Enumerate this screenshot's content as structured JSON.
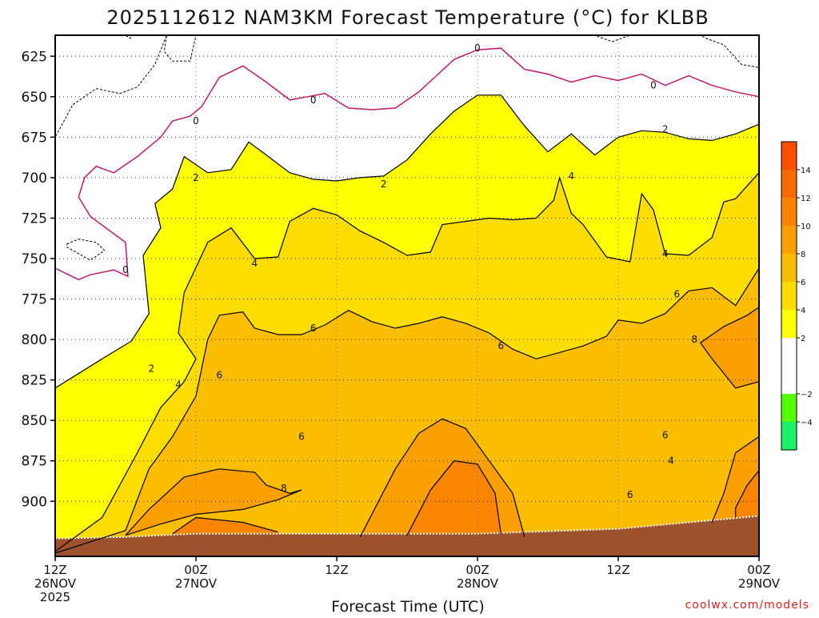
{
  "chart_data": {
    "type": "heatmap",
    "title": "2025112612 NAM3KM Forecast Temperature (°C) for KLBB",
    "xlabel": "Forecast Time (UTC)",
    "ylabel": "",
    "credit": "coolwx.com/models",
    "y_axis": {
      "unit": "hPa",
      "inverted": true,
      "range": [
        612,
        934
      ],
      "ticks": [
        625,
        650,
        675,
        700,
        725,
        750,
        775,
        800,
        825,
        850,
        875,
        900
      ]
    },
    "x_axis": {
      "unit": "forecast hours from 2025112612",
      "range": [
        0,
        60
      ],
      "ticks": [
        {
          "hour": 0,
          "lines": [
            "12Z",
            "26NOV",
            "2025"
          ]
        },
        {
          "hour": 12,
          "lines": [
            "00Z",
            "27NOV"
          ]
        },
        {
          "hour": 24,
          "lines": [
            "12Z"
          ]
        },
        {
          "hour": 36,
          "lines": [
            "00Z",
            "28NOV"
          ]
        },
        {
          "hour": 48,
          "lines": [
            "12Z"
          ]
        },
        {
          "hour": 60,
          "lines": [
            "00Z",
            "29NOV"
          ]
        }
      ]
    },
    "grid": true,
    "colorbar": {
      "position": "right",
      "ticks": [
        -4,
        -2,
        2,
        4,
        6,
        8,
        10,
        12,
        14
      ],
      "bands": [
        {
          "from": -6,
          "to": -4,
          "color": "#19f266"
        },
        {
          "from": -4,
          "to": -2,
          "color": "#55ff00"
        },
        {
          "from": -2,
          "to": 2,
          "color": "#ffffff"
        },
        {
          "from": 2,
          "to": 4,
          "color": "#ffff00"
        },
        {
          "from": 4,
          "to": 6,
          "color": "#fddc00"
        },
        {
          "from": 6,
          "to": 8,
          "color": "#fbbd00"
        },
        {
          "from": 8,
          "to": 10,
          "color": "#fba000"
        },
        {
          "from": 10,
          "to": 12,
          "color": "#fb8400"
        },
        {
          "from": 12,
          "to": 14,
          "color": "#fb6a00"
        },
        {
          "from": 14,
          "to": 16,
          "color": "#fb4e00"
        }
      ]
    },
    "terrain_color": "#9d522d",
    "terrain_pressure": [
      [
        0,
        923
      ],
      [
        6,
        922
      ],
      [
        12,
        920
      ],
      [
        24,
        920
      ],
      [
        36,
        920
      ],
      [
        48,
        917
      ],
      [
        54,
        913
      ],
      [
        60,
        909
      ]
    ],
    "isotherms": [
      {
        "temp": 0,
        "color": "#c01a6e",
        "points": [
          [
            0,
            756
          ],
          [
            2,
            763
          ],
          [
            3,
            760
          ],
          [
            5,
            757
          ],
          [
            6.2,
            761
          ],
          [
            6,
            740
          ],
          [
            4.5,
            732
          ],
          [
            3,
            724
          ],
          [
            2,
            712
          ],
          [
            2.5,
            700
          ],
          [
            3.5,
            693
          ],
          [
            5,
            697
          ],
          [
            7,
            687
          ],
          [
            9,
            675
          ],
          [
            10,
            665
          ],
          [
            11.5,
            662
          ],
          [
            12.5,
            656
          ],
          [
            14,
            638
          ],
          [
            16,
            631
          ],
          [
            18,
            641
          ],
          [
            20,
            652
          ],
          [
            23,
            648
          ],
          [
            25,
            657
          ],
          [
            27,
            658
          ],
          [
            29,
            657
          ],
          [
            31,
            647
          ],
          [
            32.5,
            637
          ],
          [
            34,
            627
          ],
          [
            36,
            621
          ],
          [
            38,
            620
          ],
          [
            40,
            633
          ],
          [
            42,
            636
          ],
          [
            44,
            641
          ],
          [
            46,
            637
          ],
          [
            48,
            640
          ],
          [
            50,
            636
          ],
          [
            52,
            643
          ],
          [
            54,
            637
          ],
          [
            56,
            643
          ],
          [
            58,
            647
          ],
          [
            60,
            650
          ]
        ],
        "labels": [
          [
            6,
            757
          ],
          [
            12,
            665
          ],
          [
            22,
            652
          ],
          [
            36,
            620
          ],
          [
            51,
            643
          ]
        ]
      },
      {
        "temp": 2,
        "color": "#000000",
        "points": [
          [
            0,
            830
          ],
          [
            4,
            812
          ],
          [
            6.5,
            801
          ],
          [
            8,
            784
          ],
          [
            7.5,
            748
          ],
          [
            9,
            731
          ],
          [
            8.5,
            716
          ],
          [
            10,
            707
          ],
          [
            11,
            687
          ],
          [
            13,
            697
          ],
          [
            15,
            695
          ],
          [
            16.5,
            678
          ],
          [
            18,
            686
          ],
          [
            20,
            697
          ],
          [
            22,
            701
          ],
          [
            24,
            702
          ],
          [
            26,
            700
          ],
          [
            28,
            699
          ],
          [
            30,
            689
          ],
          [
            32,
            673
          ],
          [
            34,
            659
          ],
          [
            36,
            649
          ],
          [
            38,
            649
          ],
          [
            40,
            668
          ],
          [
            42,
            684
          ],
          [
            44,
            673
          ],
          [
            46,
            686
          ],
          [
            48,
            675
          ],
          [
            50,
            671
          ],
          [
            52,
            672
          ],
          [
            54,
            676
          ],
          [
            56,
            677
          ],
          [
            58,
            673
          ],
          [
            60,
            667
          ]
        ],
        "labels": [
          [
            12,
            700
          ],
          [
            28,
            704
          ],
          [
            52,
            670
          ],
          [
            8.2,
            818
          ]
        ]
      },
      {
        "temp": 4,
        "color": "#000000",
        "points": [
          [
            0,
            931
          ],
          [
            4,
            910
          ],
          [
            7,
            870
          ],
          [
            9,
            842
          ],
          [
            11,
            826
          ],
          [
            12,
            812
          ],
          [
            10.5,
            796
          ],
          [
            11,
            771
          ],
          [
            13,
            740
          ],
          [
            15,
            731
          ],
          [
            17,
            750
          ],
          [
            19,
            749
          ],
          [
            20,
            727
          ],
          [
            22,
            719
          ],
          [
            24,
            723
          ],
          [
            26,
            733
          ],
          [
            28,
            740
          ],
          [
            30,
            748
          ],
          [
            32,
            746
          ],
          [
            33,
            729
          ],
          [
            35,
            727
          ],
          [
            37,
            725
          ],
          [
            39,
            726
          ],
          [
            41,
            725
          ],
          [
            42.5,
            714
          ],
          [
            43,
            700
          ],
          [
            44,
            722
          ],
          [
            45,
            729
          ],
          [
            47,
            749
          ],
          [
            49,
            752
          ],
          [
            50,
            710
          ],
          [
            51,
            720
          ],
          [
            52,
            747
          ],
          [
            54,
            748
          ],
          [
            56,
            737
          ],
          [
            57,
            715
          ],
          [
            58,
            713
          ],
          [
            60,
            697
          ]
        ],
        "labels": [
          [
            10.5,
            828
          ],
          [
            17,
            753
          ],
          [
            44,
            699
          ],
          [
            52,
            747
          ],
          [
            52.5,
            875
          ]
        ]
      },
      {
        "temp": 6,
        "color": "#000000",
        "points": [
          [
            0,
            932
          ],
          [
            6,
            918
          ],
          [
            8,
            880
          ],
          [
            10,
            860
          ],
          [
            12,
            835
          ],
          [
            13,
            800
          ],
          [
            14,
            785
          ],
          [
            16,
            783
          ],
          [
            17,
            793
          ],
          [
            19,
            797
          ],
          [
            21,
            797
          ],
          [
            23,
            791
          ],
          [
            25,
            782
          ],
          [
            27,
            789
          ],
          [
            29,
            793
          ],
          [
            31,
            790
          ],
          [
            33,
            786
          ],
          [
            35,
            790
          ],
          [
            37,
            796
          ],
          [
            39,
            806
          ],
          [
            41,
            812
          ],
          [
            43,
            808
          ],
          [
            45,
            804
          ],
          [
            47,
            798
          ],
          [
            48,
            788
          ],
          [
            50,
            790
          ],
          [
            52,
            784
          ],
          [
            54,
            770
          ],
          [
            56,
            768
          ],
          [
            58,
            779
          ],
          [
            60,
            756
          ]
        ],
        "labels": [
          [
            14,
            822
          ],
          [
            22,
            793
          ],
          [
            38,
            804
          ],
          [
            53,
            772
          ],
          [
            52,
            859
          ],
          [
            49,
            896
          ],
          [
            21,
            860
          ]
        ]
      },
      {
        "temp": 8,
        "color": "#000000",
        "points": [
          [
            6,
            921
          ],
          [
            8,
            905
          ],
          [
            11,
            885
          ],
          [
            14,
            880
          ],
          [
            17,
            882
          ],
          [
            18,
            890
          ],
          [
            20,
            895
          ],
          [
            21,
            893
          ],
          [
            19,
            899
          ],
          [
            16,
            905
          ],
          [
            12,
            908
          ],
          [
            9,
            914
          ],
          [
            6,
            921
          ]
        ],
        "labels": [
          [
            19.5,
            892
          ],
          [
            54.5,
            800
          ]
        ]
      },
      {
        "temp": 8,
        "color": "#000000",
        "points": [
          [
            26,
            922
          ],
          [
            29,
            880
          ],
          [
            31,
            858
          ],
          [
            33,
            849
          ],
          [
            35,
            855
          ],
          [
            37,
            875
          ],
          [
            39,
            895
          ],
          [
            40,
            922
          ]
        ],
        "labels": []
      },
      {
        "temp": 8,
        "color": "#000000",
        "points": [
          [
            60,
            826
          ],
          [
            58,
            830
          ],
          [
            56,
            812
          ],
          [
            55,
            802
          ],
          [
            57,
            792
          ],
          [
            59,
            785
          ],
          [
            60,
            780
          ]
        ],
        "labels": []
      },
      {
        "temp": 8,
        "color": "#000000",
        "points": [
          [
            60,
            860
          ],
          [
            58,
            870
          ],
          [
            57,
            895
          ],
          [
            56,
            913
          ]
        ],
        "labels": []
      },
      {
        "temp": 10,
        "color": "#000000",
        "points": [
          [
            30,
            921
          ],
          [
            32,
            893
          ],
          [
            34,
            875
          ],
          [
            36,
            877
          ],
          [
            37.5,
            895
          ],
          [
            38,
            920
          ]
        ],
        "labels": []
      },
      {
        "temp": 10,
        "color": "#000000",
        "points": [
          [
            60,
            881
          ],
          [
            59,
            890
          ],
          [
            58,
            904
          ],
          [
            58,
            910
          ]
        ],
        "labels": []
      },
      {
        "temp": 10,
        "color": "#000000",
        "points": [
          [
            10,
            920
          ],
          [
            12,
            910
          ],
          [
            16,
            913
          ],
          [
            19,
            919
          ]
        ],
        "labels": []
      }
    ],
    "negative_regions": [
      {
        "temp": -2,
        "points": [
          [
            0,
            612
          ],
          [
            9.5,
            612
          ],
          [
            9.3,
            622
          ],
          [
            10,
            628
          ],
          [
            11.5,
            628
          ],
          [
            12,
            612
          ],
          [
            0,
            612
          ]
        ]
      },
      {
        "temp": -2,
        "points": [
          [
            0,
            612
          ],
          [
            9.5,
            612
          ],
          [
            8.5,
            630
          ],
          [
            7,
            644
          ],
          [
            5.5,
            648
          ],
          [
            3.5,
            645
          ],
          [
            1.5,
            655
          ],
          [
            0,
            675
          ]
        ]
      },
      {
        "temp": -2,
        "points": [
          [
            55,
            612
          ],
          [
            60,
            612
          ],
          [
            60,
            632
          ],
          [
            58.5,
            630
          ],
          [
            57,
            618
          ],
          [
            55.5,
            614
          ],
          [
            55,
            612
          ]
        ]
      },
      {
        "temp": -2,
        "points": [
          [
            46,
            612
          ],
          [
            49,
            612
          ],
          [
            47.5,
            616
          ],
          [
            46,
            612
          ]
        ]
      },
      {
        "temp": -2,
        "points": [
          [
            1,
            741
          ],
          [
            2,
            738
          ],
          [
            3.5,
            740
          ],
          [
            4.2,
            745
          ],
          [
            3,
            751
          ],
          [
            2,
            747
          ],
          [
            1,
            743
          ]
        ]
      },
      {
        "temp": -2,
        "points": [
          [
            6,
            612
          ],
          [
            6.5,
            612
          ],
          [
            6.4,
            614
          ],
          [
            6,
            612
          ]
        ]
      }
    ]
  }
}
